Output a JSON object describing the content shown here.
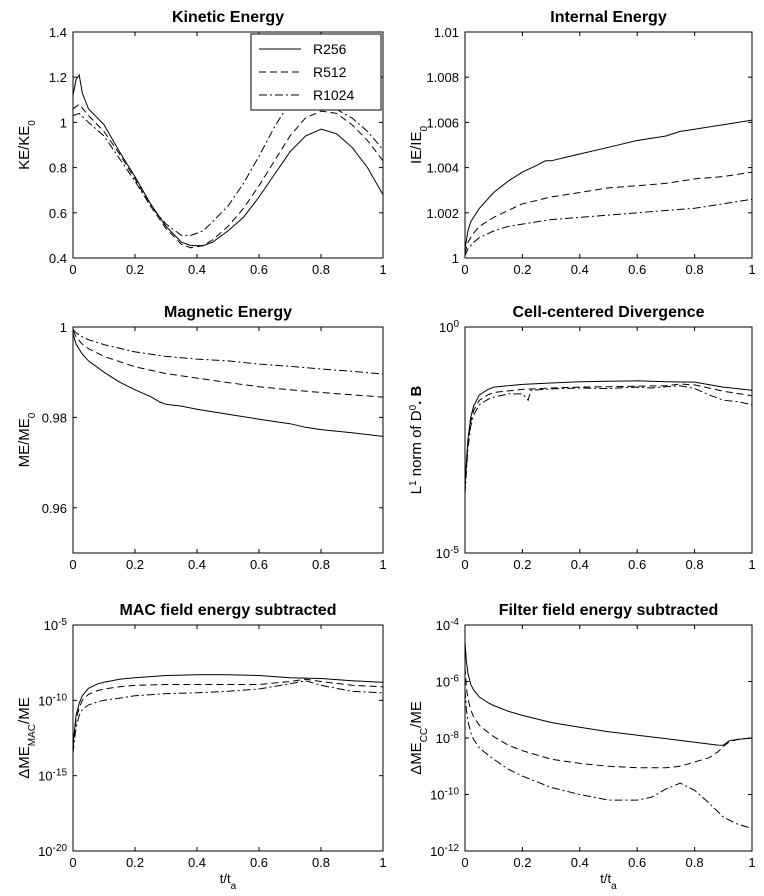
{
  "figure": {
    "xlabel": "t/t",
    "xlabel_sub": "a"
  },
  "legend": {
    "panel": 0,
    "placement": "top-right",
    "entries": [
      "R256",
      "R512",
      "R1024"
    ]
  },
  "series_styles": [
    {
      "name": "R256",
      "dash": "solid"
    },
    {
      "name": "R512",
      "dash": "dashed"
    },
    {
      "name": "R1024",
      "dash": "dashdot"
    }
  ],
  "chart_data": [
    {
      "type": "line",
      "title": "Kinetic Energy",
      "ylabel": {
        "base": "KE/KE",
        "sub": "0"
      },
      "xlim": [
        0,
        1
      ],
      "ylim": [
        0.4,
        1.4
      ],
      "yscale": "linear",
      "xticks": [
        0,
        0.2,
        0.4,
        0.6,
        0.8,
        1
      ],
      "xticklabels": [
        "0",
        "0.2",
        "0.4",
        "0.6",
        "0.8",
        "1"
      ],
      "yticks": [
        0.4,
        0.6,
        0.8,
        1,
        1.2,
        1.4
      ],
      "yticklabels": [
        "0.4",
        "0.6",
        "0.8",
        "1",
        "1.2",
        "1.4"
      ],
      "show_xlabel": false,
      "series": [
        {
          "name": "R256",
          "x": [
            0,
            0.01,
            0.02,
            0.03,
            0.05,
            0.1,
            0.15,
            0.2,
            0.25,
            0.3,
            0.35,
            0.38,
            0.42,
            0.45,
            0.5,
            0.55,
            0.6,
            0.65,
            0.7,
            0.75,
            0.8,
            0.85,
            0.9,
            0.95,
            1.0
          ],
          "y": [
            1.12,
            1.19,
            1.21,
            1.13,
            1.06,
            0.99,
            0.87,
            0.76,
            0.64,
            0.54,
            0.47,
            0.455,
            0.455,
            0.47,
            0.52,
            0.58,
            0.67,
            0.77,
            0.87,
            0.94,
            0.97,
            0.95,
            0.89,
            0.8,
            0.68
          ]
        },
        {
          "name": "R512",
          "x": [
            0,
            0.02,
            0.05,
            0.1,
            0.15,
            0.2,
            0.25,
            0.3,
            0.35,
            0.38,
            0.42,
            0.45,
            0.5,
            0.55,
            0.6,
            0.65,
            0.7,
            0.75,
            0.8,
            0.85,
            0.9,
            0.95,
            1.0
          ],
          "y": [
            1.06,
            1.08,
            1.03,
            0.96,
            0.86,
            0.75,
            0.63,
            0.53,
            0.46,
            0.445,
            0.455,
            0.48,
            0.54,
            0.62,
            0.72,
            0.83,
            0.94,
            1.02,
            1.05,
            1.04,
            0.99,
            0.92,
            0.83
          ]
        },
        {
          "name": "R1024",
          "x": [
            0,
            0.02,
            0.05,
            0.1,
            0.15,
            0.2,
            0.25,
            0.3,
            0.35,
            0.38,
            0.42,
            0.45,
            0.5,
            0.55,
            0.6,
            0.65,
            0.7,
            0.74,
            0.78,
            0.82,
            0.86,
            0.9,
            0.95,
            1.0
          ],
          "y": [
            1.03,
            1.04,
            1.0,
            0.94,
            0.84,
            0.74,
            0.63,
            0.55,
            0.5,
            0.5,
            0.52,
            0.56,
            0.63,
            0.73,
            0.85,
            0.98,
            1.09,
            1.13,
            1.13,
            1.1,
            1.05,
            1.02,
            0.96,
            0.88
          ]
        }
      ]
    },
    {
      "type": "line",
      "title": "Internal Energy",
      "ylabel": {
        "base": "IE/IE",
        "sub": "0"
      },
      "xlim": [
        0,
        1
      ],
      "ylim": [
        1,
        1.01
      ],
      "yscale": "linear",
      "xticks": [
        0,
        0.2,
        0.4,
        0.6,
        0.8,
        1
      ],
      "xticklabels": [
        "0",
        "0.2",
        "0.4",
        "0.6",
        "0.8",
        "1"
      ],
      "yticks": [
        1,
        1.002,
        1.004,
        1.006,
        1.008,
        1.01
      ],
      "yticklabels": [
        "1",
        "1.002",
        "1.004",
        "1.006",
        "1.008",
        "1.01"
      ],
      "show_xlabel": false,
      "series": [
        {
          "name": "R256",
          "x": [
            0,
            0.01,
            0.02,
            0.05,
            0.1,
            0.15,
            0.2,
            0.25,
            0.28,
            0.3,
            0.35,
            0.4,
            0.5,
            0.6,
            0.7,
            0.75,
            0.8,
            0.9,
            1.0
          ],
          "y": [
            1.0004,
            1.0012,
            1.0016,
            1.0022,
            1.0029,
            1.0034,
            1.0038,
            1.0041,
            1.0043,
            1.0043,
            1.00445,
            1.0046,
            1.0049,
            1.0052,
            1.0054,
            1.0056,
            1.0057,
            1.0059,
            1.0061
          ]
        },
        {
          "name": "R512",
          "x": [
            0,
            0.01,
            0.03,
            0.05,
            0.1,
            0.15,
            0.2,
            0.3,
            0.4,
            0.5,
            0.6,
            0.7,
            0.8,
            0.9,
            1.0
          ],
          "y": [
            1.0002,
            1.0007,
            1.0011,
            1.0014,
            1.0018,
            1.0021,
            1.0024,
            1.0027,
            1.0029,
            1.0031,
            1.0032,
            1.0033,
            1.0035,
            1.0036,
            1.0038
          ]
        },
        {
          "name": "R1024",
          "x": [
            0,
            0.01,
            0.03,
            0.05,
            0.1,
            0.15,
            0.2,
            0.3,
            0.4,
            0.5,
            0.6,
            0.7,
            0.8,
            0.9,
            1.0
          ],
          "y": [
            1.0001,
            1.0004,
            1.0007,
            1.0009,
            1.0012,
            1.0014,
            1.0015,
            1.0017,
            1.0018,
            1.0019,
            1.002,
            1.0021,
            1.0022,
            1.0024,
            1.0026
          ]
        }
      ]
    },
    {
      "type": "line",
      "title": "Magnetic Energy",
      "ylabel": {
        "base": "ME/ME",
        "sub": "0"
      },
      "xlim": [
        0,
        1
      ],
      "ylim": [
        0.95,
        1.0
      ],
      "yscale": "linear",
      "xticks": [
        0,
        0.2,
        0.4,
        0.6,
        0.8,
        1
      ],
      "xticklabels": [
        "0",
        "0.2",
        "0.4",
        "0.6",
        "0.8",
        "1"
      ],
      "yticks": [
        0.96,
        0.98,
        1
      ],
      "yticklabels": [
        "0.96",
        "0.98",
        "1"
      ],
      "show_xlabel": false,
      "series": [
        {
          "name": "R256",
          "x": [
            0,
            0.01,
            0.03,
            0.05,
            0.1,
            0.15,
            0.2,
            0.25,
            0.28,
            0.3,
            0.35,
            0.4,
            0.5,
            0.6,
            0.7,
            0.75,
            0.8,
            0.9,
            1.0
          ],
          "y": [
            0.9985,
            0.9962,
            0.994,
            0.9925,
            0.99,
            0.9878,
            0.9861,
            0.9846,
            0.9834,
            0.9829,
            0.9825,
            0.9818,
            0.9807,
            0.9796,
            0.9786,
            0.9778,
            0.9773,
            0.9766,
            0.9758
          ]
        },
        {
          "name": "R512",
          "x": [
            0,
            0.01,
            0.03,
            0.05,
            0.1,
            0.2,
            0.3,
            0.4,
            0.5,
            0.6,
            0.7,
            0.8,
            0.9,
            1.0
          ],
          "y": [
            0.9992,
            0.9978,
            0.9962,
            0.9952,
            0.9935,
            0.9912,
            0.9897,
            0.9887,
            0.9877,
            0.9868,
            0.9861,
            0.9855,
            0.985,
            0.9845
          ]
        },
        {
          "name": "R1024",
          "x": [
            0,
            0.01,
            0.03,
            0.05,
            0.1,
            0.2,
            0.3,
            0.4,
            0.5,
            0.6,
            0.7,
            0.8,
            0.9,
            1.0
          ],
          "y": [
            0.9995,
            0.9987,
            0.9978,
            0.9972,
            0.9961,
            0.9945,
            0.9935,
            0.9929,
            0.9925,
            0.9918,
            0.9913,
            0.9907,
            0.9902,
            0.9896
          ]
        }
      ]
    },
    {
      "type": "line",
      "title": "Cell-centered Divergence",
      "ylabel": {
        "base": "L",
        "sup": "1",
        "mid": " norm of D",
        "sup2": "0",
        "end": ". B"
      },
      "xlim": [
        0,
        1
      ],
      "ylim": [
        -5,
        0
      ],
      "yscale": "log",
      "xticks": [
        0,
        0.2,
        0.4,
        0.6,
        0.8,
        1
      ],
      "xticklabels": [
        "0",
        "0.2",
        "0.4",
        "0.6",
        "0.8",
        "1"
      ],
      "yticks": [
        -5,
        0
      ],
      "yticklabels": [
        {
          "base": "10",
          "exp": "-5"
        },
        {
          "base": "10",
          "exp": "0"
        }
      ],
      "show_xlabel": false,
      "series": [
        {
          "name": "R256",
          "x": [
            0,
            0.005,
            0.01,
            0.02,
            0.03,
            0.05,
            0.08,
            0.1,
            0.2,
            0.3,
            0.4,
            0.5,
            0.6,
            0.7,
            0.8,
            0.9,
            1.0
          ],
          "y": [
            -3.5,
            -3.0,
            -2.5,
            -2.0,
            -1.75,
            -1.5,
            -1.38,
            -1.33,
            -1.27,
            -1.24,
            -1.21,
            -1.2,
            -1.19,
            -1.21,
            -1.22,
            -1.33,
            -1.4
          ]
        },
        {
          "name": "R512",
          "x": [
            0,
            0.005,
            0.01,
            0.02,
            0.03,
            0.05,
            0.08,
            0.1,
            0.2,
            0.3,
            0.4,
            0.5,
            0.6,
            0.7,
            0.75,
            0.8,
            0.9,
            1.0
          ],
          "y": [
            -3.6,
            -3.1,
            -2.6,
            -2.1,
            -1.85,
            -1.62,
            -1.5,
            -1.45,
            -1.38,
            -1.35,
            -1.33,
            -1.32,
            -1.31,
            -1.3,
            -1.26,
            -1.28,
            -1.42,
            -1.52
          ]
        },
        {
          "name": "R1024",
          "x": [
            0,
            0.005,
            0.01,
            0.02,
            0.03,
            0.05,
            0.08,
            0.1,
            0.15,
            0.2,
            0.22,
            0.23,
            0.3,
            0.4,
            0.5,
            0.6,
            0.65,
            0.7,
            0.75,
            0.8,
            0.85,
            0.9,
            0.95,
            1.0
          ],
          "y": [
            -3.7,
            -3.2,
            -2.7,
            -2.2,
            -1.95,
            -1.72,
            -1.6,
            -1.55,
            -1.48,
            -1.48,
            -1.62,
            -1.4,
            -1.37,
            -1.35,
            -1.36,
            -1.33,
            -1.35,
            -1.32,
            -1.3,
            -1.36,
            -1.5,
            -1.62,
            -1.65,
            -1.72
          ]
        }
      ]
    },
    {
      "type": "line",
      "title": "MAC field energy subtracted",
      "ylabel": {
        "base": "ΔME",
        "sub": "MAC",
        "end": "/ME"
      },
      "xlim": [
        0,
        1
      ],
      "ylim": [
        -20,
        -5
      ],
      "yscale": "log",
      "xticks": [
        0,
        0.2,
        0.4,
        0.6,
        0.8,
        1
      ],
      "xticklabels": [
        "0",
        "0.2",
        "0.4",
        "0.6",
        "0.8",
        "1"
      ],
      "yticks": [
        -20,
        -15,
        -10,
        -5
      ],
      "yticklabels": [
        {
          "base": "10",
          "exp": "-20"
        },
        {
          "base": "10",
          "exp": "-15"
        },
        {
          "base": "10",
          "exp": "-10"
        },
        {
          "base": "10",
          "exp": "-5"
        }
      ],
      "show_xlabel": true,
      "series": [
        {
          "name": "R256",
          "x": [
            0,
            0.005,
            0.01,
            0.02,
            0.03,
            0.05,
            0.08,
            0.1,
            0.15,
            0.2,
            0.3,
            0.4,
            0.5,
            0.6,
            0.7,
            0.8,
            0.9,
            1.0
          ],
          "y": [
            -13.0,
            -12.0,
            -11.0,
            -10.2,
            -9.7,
            -9.2,
            -8.9,
            -8.8,
            -8.6,
            -8.5,
            -8.35,
            -8.3,
            -8.3,
            -8.35,
            -8.5,
            -8.55,
            -8.7,
            -8.8
          ]
        },
        {
          "name": "R512",
          "x": [
            0,
            0.005,
            0.01,
            0.02,
            0.03,
            0.05,
            0.08,
            0.1,
            0.15,
            0.2,
            0.3,
            0.4,
            0.5,
            0.6,
            0.7,
            0.75,
            0.8,
            0.9,
            1.0
          ],
          "y": [
            -13.2,
            -12.2,
            -11.3,
            -10.5,
            -10.0,
            -9.6,
            -9.35,
            -9.25,
            -9.1,
            -9.0,
            -8.95,
            -8.95,
            -8.95,
            -8.95,
            -8.75,
            -8.6,
            -8.75,
            -9.0,
            -9.1
          ]
        },
        {
          "name": "R1024",
          "x": [
            0,
            0.005,
            0.01,
            0.02,
            0.03,
            0.05,
            0.08,
            0.1,
            0.15,
            0.2,
            0.3,
            0.4,
            0.5,
            0.6,
            0.7,
            0.75,
            0.8,
            0.9,
            1.0
          ],
          "y": [
            -13.5,
            -12.6,
            -11.8,
            -11.0,
            -10.6,
            -10.3,
            -10.1,
            -10.0,
            -9.85,
            -9.7,
            -9.55,
            -9.5,
            -9.4,
            -9.25,
            -8.9,
            -8.7,
            -9.0,
            -9.4,
            -9.5
          ]
        }
      ]
    },
    {
      "type": "line",
      "title": "Filter field energy subtracted",
      "ylabel": {
        "base": "ΔME",
        "sub": "CC",
        "end": "/ME"
      },
      "xlim": [
        0,
        1
      ],
      "ylim": [
        -12,
        -4
      ],
      "yscale": "log",
      "xticks": [
        0,
        0.2,
        0.4,
        0.6,
        0.8,
        1
      ],
      "xticklabels": [
        "0",
        "0.2",
        "0.4",
        "0.6",
        "0.8",
        "1"
      ],
      "yticks": [
        -12,
        -10,
        -8,
        -6,
        -4
      ],
      "yticklabels": [
        {
          "base": "10",
          "exp": "-12"
        },
        {
          "base": "10",
          "exp": "-10"
        },
        {
          "base": "10",
          "exp": "-8"
        },
        {
          "base": "10",
          "exp": "-6"
        },
        {
          "base": "10",
          "exp": "-4"
        }
      ],
      "show_xlabel": true,
      "series": [
        {
          "name": "R256",
          "x": [
            0,
            0.005,
            0.01,
            0.02,
            0.03,
            0.05,
            0.08,
            0.1,
            0.15,
            0.2,
            0.3,
            0.4,
            0.5,
            0.6,
            0.7,
            0.8,
            0.88,
            0.9,
            0.92,
            0.95,
            1.0
          ],
          "y": [
            -4.6,
            -5.3,
            -5.7,
            -6.1,
            -6.3,
            -6.55,
            -6.75,
            -6.85,
            -7.05,
            -7.2,
            -7.45,
            -7.62,
            -7.78,
            -7.9,
            -8.02,
            -8.15,
            -8.25,
            -8.26,
            -8.1,
            -8.05,
            -8.0
          ]
        },
        {
          "name": "R512",
          "x": [
            0,
            0.005,
            0.01,
            0.02,
            0.03,
            0.05,
            0.08,
            0.1,
            0.15,
            0.2,
            0.3,
            0.4,
            0.5,
            0.6,
            0.7,
            0.75,
            0.8,
            0.85,
            0.88,
            0.9,
            0.92,
            0.95,
            1.0
          ],
          "y": [
            -5.5,
            -6.2,
            -6.6,
            -7.0,
            -7.25,
            -7.55,
            -7.8,
            -7.95,
            -8.25,
            -8.45,
            -8.75,
            -8.9,
            -9.0,
            -9.05,
            -9.05,
            -9.0,
            -8.85,
            -8.7,
            -8.5,
            -8.3,
            -8.15,
            -8.05,
            -8.0
          ]
        },
        {
          "name": "R1024",
          "x": [
            0,
            0.005,
            0.01,
            0.02,
            0.03,
            0.05,
            0.08,
            0.1,
            0.15,
            0.2,
            0.3,
            0.4,
            0.5,
            0.6,
            0.65,
            0.7,
            0.75,
            0.8,
            0.85,
            0.88,
            0.9,
            0.95,
            1.0
          ],
          "y": [
            -6.3,
            -7.0,
            -7.4,
            -7.8,
            -8.05,
            -8.35,
            -8.6,
            -8.75,
            -9.1,
            -9.35,
            -9.75,
            -10.0,
            -10.2,
            -10.2,
            -10.1,
            -9.8,
            -9.6,
            -9.85,
            -10.3,
            -10.6,
            -10.8,
            -11.05,
            -11.2
          ]
        }
      ]
    }
  ]
}
